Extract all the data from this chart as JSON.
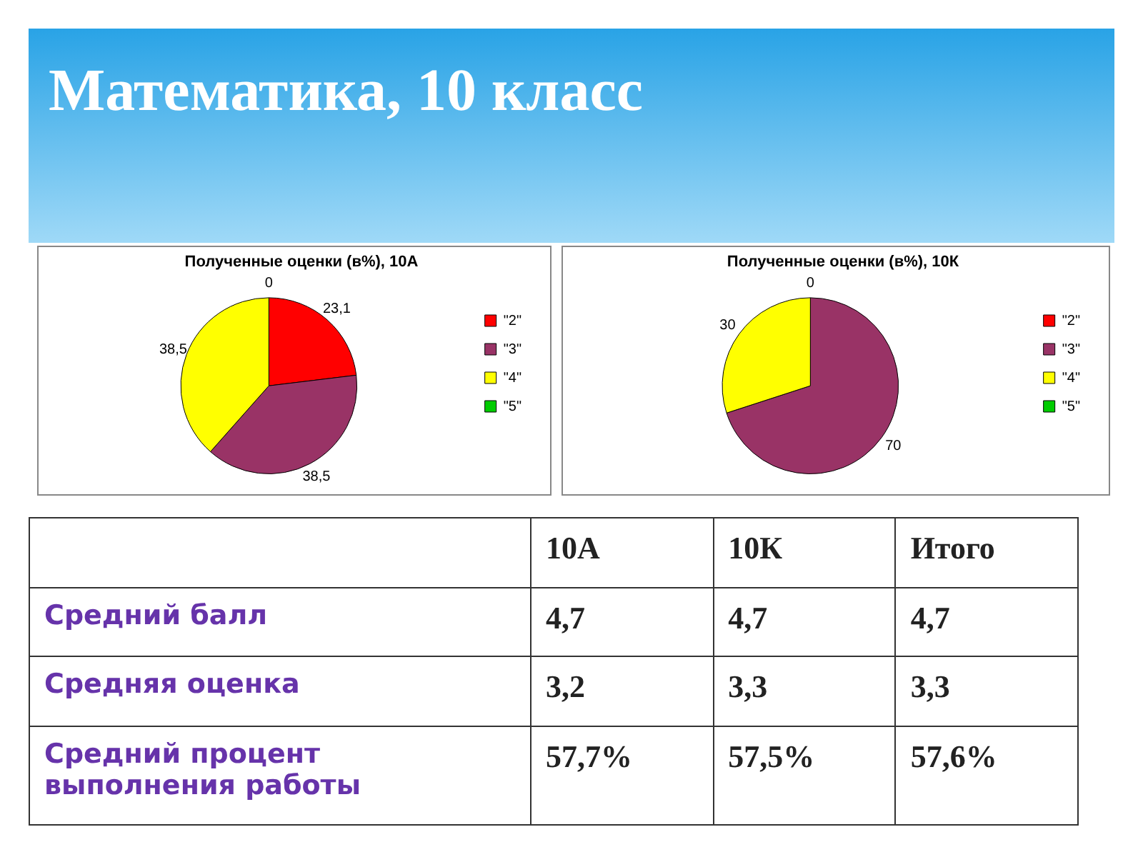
{
  "chart_data": [
    {
      "type": "other",
      "title": "Математика, 10 класс"
    },
    {
      "type": "pie",
      "title": "Полученные оценки (в%), 10А",
      "categories": [
        "\"2\"",
        "\"3\"",
        "\"4\"",
        "\"5\""
      ],
      "values": [
        23.1,
        38.5,
        38.5,
        0
      ],
      "colors": [
        "#ff0000",
        "#993366",
        "#ffff00",
        "#00cc00"
      ],
      "value_labels": [
        "23,1",
        "38,5",
        "38,5",
        "0"
      ],
      "legend": "right"
    },
    {
      "type": "pie",
      "title": "Полученные оценки (в%), 10К",
      "categories": [
        "\"2\"",
        "\"3\"",
        "\"4\"",
        "\"5\""
      ],
      "values": [
        0,
        70,
        30,
        0
      ],
      "colors": [
        "#ff0000",
        "#993366",
        "#ffff00",
        "#00cc00"
      ],
      "value_labels": [
        null,
        "70",
        "30",
        "0"
      ],
      "legend": "right"
    },
    {
      "type": "other",
      "annotations": [
        "10А",
        "10К",
        "Итого",
        "Средний балл",
        "4,7",
        "4,7",
        "4,7",
        "Средняя оценка",
        "3,2",
        "3,3",
        "3,3",
        "Средний процент выполнения работы",
        "57,7%",
        "57,5%",
        "57,6%"
      ]
    }
  ]
}
